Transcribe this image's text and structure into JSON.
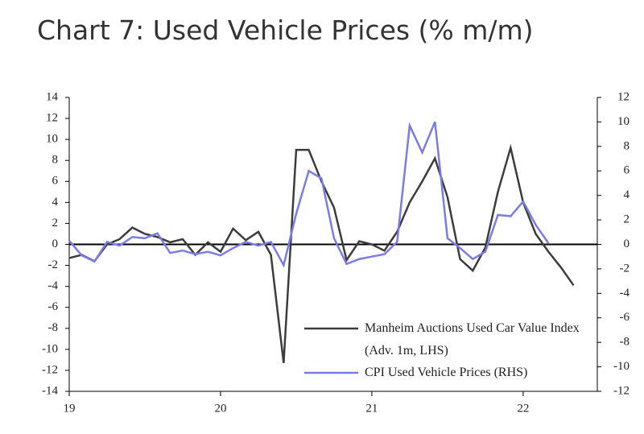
{
  "chart_data": {
    "type": "line",
    "title": "Chart 7: Used Vehicle Prices (% m/m)",
    "x": [
      2019,
      2019.083,
      2019.167,
      2019.25,
      2019.333,
      2019.417,
      2019.5,
      2019.583,
      2019.667,
      2019.75,
      2019.833,
      2019.917,
      2020,
      2020.083,
      2020.167,
      2020.25,
      2020.333,
      2020.417,
      2020.5,
      2020.583,
      2020.667,
      2020.75,
      2020.833,
      2020.917,
      2021,
      2021.083,
      2021.167,
      2021.25,
      2021.333,
      2021.417,
      2021.5,
      2021.583,
      2021.667,
      2021.75,
      2021.833,
      2021.917,
      2022,
      2022.083,
      2022.167,
      2022.25,
      2022.333
    ],
    "xlim": [
      2019,
      2022.49
    ],
    "xticks": [
      {
        "value": 2019,
        "label": "19"
      },
      {
        "value": 2020,
        "label": "20"
      },
      {
        "value": 2021,
        "label": "21"
      },
      {
        "value": 2022,
        "label": "22"
      }
    ],
    "ylim": [
      -14,
      14
    ],
    "yticks": [
      -14,
      -12,
      -10,
      -8,
      -6,
      -4,
      -2,
      0,
      2,
      4,
      6,
      8,
      10,
      12,
      14
    ],
    "y2lim": [
      -12,
      12
    ],
    "y2ticks": [
      -12,
      -10,
      -8,
      -6,
      -4,
      -2,
      0,
      2,
      4,
      6,
      8,
      10,
      12
    ],
    "series": [
      {
        "name": "Manheim Auctions Used Car Value Index (Adv. 1m, LHS)",
        "color": "#3c3c3c",
        "values": [
          -1.3,
          -1.0,
          -1.6,
          0,
          0.5,
          1.6,
          1.0,
          0.7,
          0.2,
          0.5,
          -1.0,
          0.2,
          -0.7,
          1.5,
          0.4,
          1.2,
          -1.0,
          -11.3,
          9,
          9,
          6,
          3.5,
          -1.5,
          0.3,
          0.0,
          -0.6,
          1.2,
          4,
          6,
          8.2,
          4.5,
          -1.4,
          -2.5,
          -0.3,
          5,
          9.2,
          4,
          1,
          -0.7,
          -2.2,
          -3.9
        ]
      },
      {
        "name": "CPI Used Vehicle Prices (RHS)",
        "color": "#7b7be8",
        "axis": "y2",
        "values": [
          0.3,
          -0.9,
          -1.4,
          0.2,
          -0.1,
          0.6,
          0.5,
          0.9,
          -0.7,
          -0.5,
          -0.8,
          -0.6,
          -0.9,
          -0.3,
          0.2,
          -0.1,
          0.2,
          -1.7,
          2.5,
          6.0,
          5.4,
          0.5,
          -1.6,
          -1.2,
          -1.0,
          -0.8,
          0.2,
          9.7,
          7.5,
          10.0,
          0.5,
          -0.3,
          -1.2,
          -0.6,
          2.4,
          2.3,
          3.5,
          1.6,
          0.1,
          null,
          null
        ]
      }
    ]
  }
}
